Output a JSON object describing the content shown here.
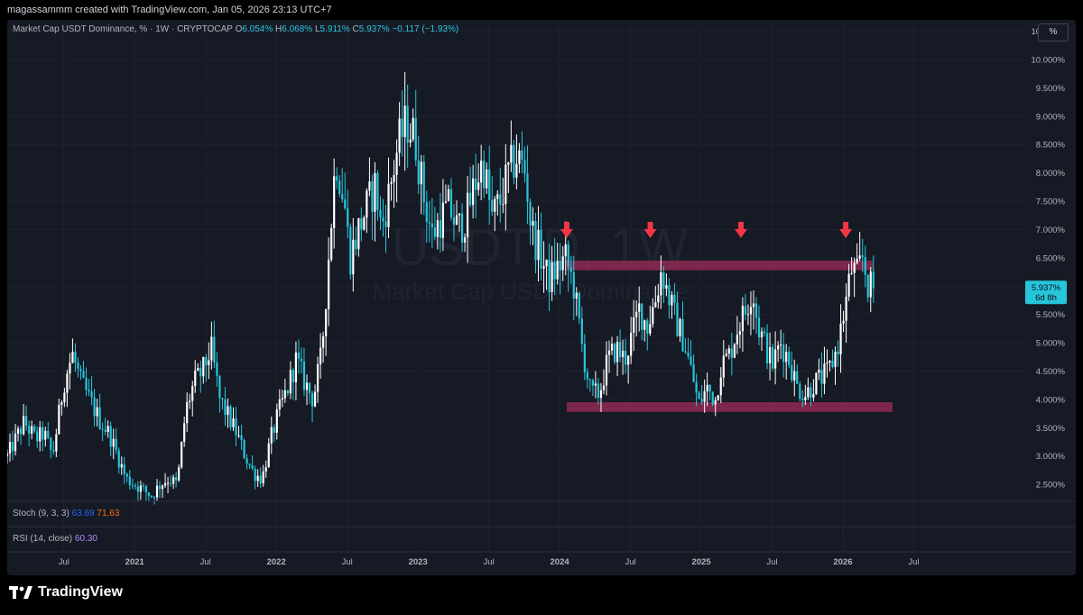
{
  "header": {
    "attribution": "magassammm created with TradingView.com, Jan 05, 2026 23:13 UTC+7"
  },
  "legend": {
    "title": "Market Cap USDT Dominance, % · 1W · CRYPTOCAP",
    "open_label": "O",
    "open": "6.054%",
    "high_label": "H",
    "high": "6.068%",
    "low_label": "L",
    "low": "5.911%",
    "close_label": "C",
    "close": "5.937%",
    "change": "−0.117 (−1.93%)"
  },
  "scale_button": "%",
  "price_badge": {
    "value": "5.937%",
    "countdown": "6d 8h",
    "color": "#26c6da"
  },
  "watermark": {
    "symbol": "USDT.D, 1W",
    "name": "Market Cap USDT Dominance"
  },
  "indicators": {
    "stoch": {
      "label": "Stoch (9, 3, 3)",
      "k": "63.69",
      "d": "71.63"
    },
    "rsi": {
      "label": "RSI (14, close)",
      "value": "60.30"
    }
  },
  "branding": {
    "logo_text": "TradingView"
  },
  "colors": {
    "background": "#161a25",
    "up": "#ffffff",
    "down": "#26c6da",
    "zone": "#8e2a52",
    "arrow": "#f23645"
  },
  "chart_data": {
    "type": "candlestick",
    "title": "Market Cap USDT Dominance, % · 1W · CRYPTOCAP",
    "ylabel": "%",
    "ylim": [
      2.2,
      10.7
    ],
    "y_ticks": [
      "10.500%",
      "10.000%",
      "9.500%",
      "9.000%",
      "8.500%",
      "8.000%",
      "7.500%",
      "7.000%",
      "6.500%",
      "6.000%",
      "5.500%",
      "5.000%",
      "4.500%",
      "4.000%",
      "3.500%",
      "3.000%",
      "2.500%"
    ],
    "x_ticks": [
      {
        "label": "Jul",
        "t": 2020.5
      },
      {
        "label": "2021",
        "t": 2021.0
      },
      {
        "label": "Jul",
        "t": 2021.5
      },
      {
        "label": "2022",
        "t": 2022.0
      },
      {
        "label": "Jul",
        "t": 2022.5
      },
      {
        "label": "2023",
        "t": 2023.0
      },
      {
        "label": "Jul",
        "t": 2023.5
      },
      {
        "label": "2024",
        "t": 2024.0
      },
      {
        "label": "Jul",
        "t": 2024.5
      },
      {
        "label": "2025",
        "t": 2025.0
      },
      {
        "label": "Jul",
        "t": 2025.5
      },
      {
        "label": "2026",
        "t": 2026.0
      },
      {
        "label": "Jul",
        "t": 2026.5
      }
    ],
    "xlim": [
      2020.1,
      2027.3
    ],
    "price_path": [
      [
        2020.1,
        3.0
      ],
      [
        2020.16,
        3.3
      ],
      [
        2020.22,
        3.6
      ],
      [
        2020.3,
        3.3
      ],
      [
        2020.36,
        3.4
      ],
      [
        2020.42,
        3.0
      ],
      [
        2020.5,
        4.3
      ],
      [
        2020.56,
        4.8
      ],
      [
        2020.62,
        4.3
      ],
      [
        2020.7,
        3.9
      ],
      [
        2020.76,
        3.6
      ],
      [
        2020.82,
        3.4
      ],
      [
        2020.88,
        3.0
      ],
      [
        2020.94,
        2.6
      ],
      [
        2021.0,
        2.5
      ],
      [
        2021.06,
        2.4
      ],
      [
        2021.12,
        2.3
      ],
      [
        2021.18,
        2.5
      ],
      [
        2021.24,
        2.6
      ],
      [
        2021.3,
        2.5
      ],
      [
        2021.36,
        3.8
      ],
      [
        2021.42,
        4.3
      ],
      [
        2021.48,
        4.5
      ],
      [
        2021.54,
        4.9
      ],
      [
        2021.6,
        4.0
      ],
      [
        2021.66,
        3.7
      ],
      [
        2021.72,
        3.4
      ],
      [
        2021.78,
        3.0
      ],
      [
        2021.84,
        2.7
      ],
      [
        2021.9,
        2.6
      ],
      [
        2021.96,
        3.3
      ],
      [
        2022.02,
        3.8
      ],
      [
        2022.08,
        4.2
      ],
      [
        2022.14,
        4.7
      ],
      [
        2022.2,
        4.3
      ],
      [
        2022.26,
        4.0
      ],
      [
        2022.32,
        4.8
      ],
      [
        2022.36,
        6.2
      ],
      [
        2022.42,
        8.3
      ],
      [
        2022.48,
        7.5
      ],
      [
        2022.52,
        6.5
      ],
      [
        2022.58,
        7.0
      ],
      [
        2022.64,
        7.4
      ],
      [
        2022.7,
        7.8
      ],
      [
        2022.74,
        7.0
      ],
      [
        2022.8,
        7.7
      ],
      [
        2022.86,
        8.5
      ],
      [
        2022.92,
        8.9
      ],
      [
        2022.98,
        8.6
      ],
      [
        2023.04,
        7.6
      ],
      [
        2023.1,
        6.9
      ],
      [
        2023.16,
        7.2
      ],
      [
        2023.22,
        7.4
      ],
      [
        2023.28,
        7.0
      ],
      [
        2023.34,
        7.2
      ],
      [
        2023.4,
        7.8
      ],
      [
        2023.46,
        8.2
      ],
      [
        2023.52,
        7.2
      ],
      [
        2023.58,
        7.5
      ],
      [
        2023.64,
        8.0
      ],
      [
        2023.7,
        8.3
      ],
      [
        2023.76,
        8.0
      ],
      [
        2023.8,
        7.0
      ],
      [
        2023.86,
        6.6
      ],
      [
        2023.92,
        6.1
      ],
      [
        2023.98,
        6.3
      ],
      [
        2024.04,
        6.5
      ],
      [
        2024.1,
        6.0
      ],
      [
        2024.16,
        4.9
      ],
      [
        2024.22,
        4.1
      ],
      [
        2024.28,
        4.1
      ],
      [
        2024.34,
        4.7
      ],
      [
        2024.4,
        4.9
      ],
      [
        2024.46,
        4.7
      ],
      [
        2024.52,
        5.2
      ],
      [
        2024.56,
        5.6
      ],
      [
        2024.62,
        5.3
      ],
      [
        2024.68,
        5.8
      ],
      [
        2024.72,
        6.3
      ],
      [
        2024.76,
        5.9
      ],
      [
        2024.82,
        5.4
      ],
      [
        2024.88,
        5.0
      ],
      [
        2024.94,
        4.4
      ],
      [
        2024.98,
        3.9
      ],
      [
        2025.04,
        4.2
      ],
      [
        2025.1,
        4.0
      ],
      [
        2025.14,
        4.6
      ],
      [
        2025.2,
        4.8
      ],
      [
        2025.26,
        5.3
      ],
      [
        2025.32,
        5.6
      ],
      [
        2025.36,
        6.0
      ],
      [
        2025.4,
        5.3
      ],
      [
        2025.46,
        4.9
      ],
      [
        2025.5,
        4.6
      ],
      [
        2025.56,
        5.0
      ],
      [
        2025.62,
        4.7
      ],
      [
        2025.68,
        4.2
      ],
      [
        2025.74,
        4.1
      ],
      [
        2025.8,
        4.3
      ],
      [
        2025.86,
        4.4
      ],
      [
        2025.9,
        4.5
      ],
      [
        2025.96,
        4.9
      ],
      [
        2026.02,
        5.7
      ],
      [
        2026.06,
        6.3
      ],
      [
        2026.1,
        6.2
      ],
      [
        2026.14,
        6.5
      ],
      [
        2026.18,
        6.0
      ],
      [
        2026.22,
        5.94
      ]
    ],
    "zones": [
      {
        "t_start": 2024.04,
        "t_end": 2026.21,
        "y_low": 6.28,
        "y_high": 6.45
      },
      {
        "t_start": 2024.05,
        "t_end": 2026.35,
        "y_low": 3.78,
        "y_high": 3.95
      }
    ],
    "arrows": [
      2024.05,
      2024.64,
      2025.28,
      2026.02
    ],
    "last_price": 5.937
  }
}
